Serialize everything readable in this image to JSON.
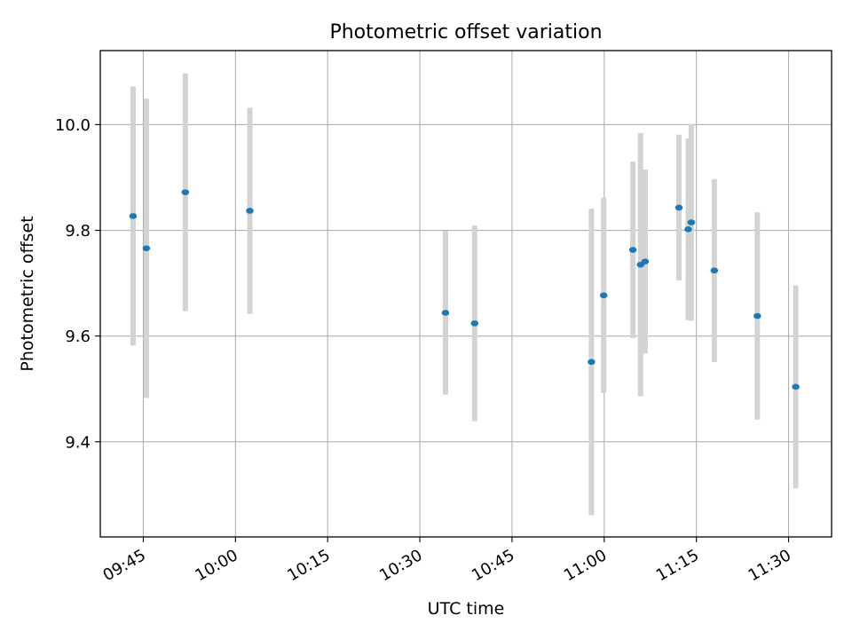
{
  "chart_data": {
    "type": "scatter",
    "title": "Photometric offset variation",
    "xlabel": "UTC time",
    "ylabel": "Photometric offset",
    "x_ticks": [
      "09:45",
      "10:00",
      "10:15",
      "10:30",
      "10:45",
      "11:00",
      "11:15",
      "11:30"
    ],
    "y_ticks": [
      "9.4",
      "9.6",
      "9.8",
      "10.0"
    ],
    "xlim": [
      "09:38",
      "11:37"
    ],
    "ylim": [
      9.22,
      10.14
    ],
    "grid": true,
    "point_color": "#1f77b4",
    "errorbar_color": "#d3d3d3",
    "points": [
      {
        "x": "09:43:20",
        "y": 9.827,
        "err": 0.245
      },
      {
        "x": "09:45:30",
        "y": 9.766,
        "err": 0.283
      },
      {
        "x": "09:51:50",
        "y": 9.872,
        "err": 0.225
      },
      {
        "x": "10:02:20",
        "y": 9.837,
        "err": 0.195
      },
      {
        "x": "10:34:10",
        "y": 9.644,
        "err": 0.155
      },
      {
        "x": "10:38:55",
        "y": 9.624,
        "err": 0.185
      },
      {
        "x": "10:57:55",
        "y": 9.551,
        "err": 0.29
      },
      {
        "x": "10:59:55",
        "y": 9.677,
        "err": 0.185
      },
      {
        "x": "11:04:40",
        "y": 9.763,
        "err": 0.167
      },
      {
        "x": "11:05:55",
        "y": 9.735,
        "err": 0.249
      },
      {
        "x": "11:06:40",
        "y": 9.741,
        "err": 0.174
      },
      {
        "x": "11:12:10",
        "y": 9.843,
        "err": 0.138
      },
      {
        "x": "11:13:40",
        "y": 9.802,
        "err": 0.172
      },
      {
        "x": "11:14:10",
        "y": 9.815,
        "err": 0.186
      },
      {
        "x": "11:17:55",
        "y": 9.724,
        "err": 0.173
      },
      {
        "x": "11:24:55",
        "y": 9.638,
        "err": 0.196
      },
      {
        "x": "11:31:10",
        "y": 9.504,
        "err": 0.192
      }
    ]
  }
}
